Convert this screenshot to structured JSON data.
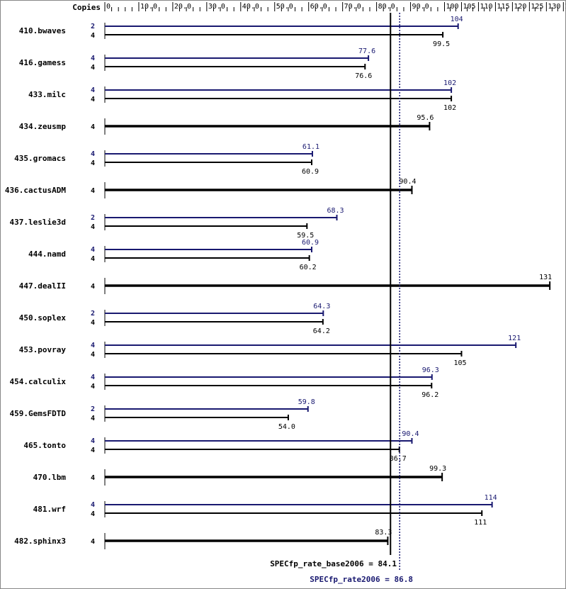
{
  "chart_data": {
    "type": "bar",
    "axis": {
      "label": "Copies",
      "min": 0,
      "max": 135,
      "ticks": [
        {
          "v": 0,
          "t": "0"
        },
        {
          "v": 10,
          "t": "10.0"
        },
        {
          "v": 20,
          "t": "20.0"
        },
        {
          "v": 30,
          "t": "30.0"
        },
        {
          "v": 40,
          "t": "40.0"
        },
        {
          "v": 50,
          "t": "50.0"
        },
        {
          "v": 60,
          "t": "60.0"
        },
        {
          "v": 70,
          "t": "70.0"
        },
        {
          "v": 80,
          "t": "80.0"
        },
        {
          "v": 90,
          "t": "90.0"
        },
        {
          "v": 100,
          "t": "100"
        },
        {
          "v": 105,
          "t": "105"
        },
        {
          "v": 110,
          "t": "110"
        },
        {
          "v": 115,
          "t": "115"
        },
        {
          "v": 120,
          "t": "120"
        },
        {
          "v": 125,
          "t": "125"
        },
        {
          "v": 130,
          "t": "130"
        },
        {
          "v": 135,
          "t": "135"
        }
      ]
    },
    "colors": {
      "base": "#000000",
      "peak": "#191970"
    },
    "benchmarks": [
      {
        "name": "410.bwaves",
        "peak_copies": "2",
        "peak": 104,
        "peak_label": "104",
        "base_copies": "4",
        "base": 99.5,
        "base_label": "99.5"
      },
      {
        "name": "416.gamess",
        "peak_copies": "4",
        "peak": 77.6,
        "peak_label": "77.6",
        "base_copies": "4",
        "base": 76.6,
        "base_label": "76.6"
      },
      {
        "name": "433.milc",
        "peak_copies": "4",
        "peak": 102,
        "peak_label": "102",
        "base_copies": "4",
        "base": 102,
        "base_label": "102"
      },
      {
        "name": "434.zeusmp",
        "single": true,
        "base_copies": "4",
        "base": 95.6,
        "base_label": "95.6"
      },
      {
        "name": "435.gromacs",
        "peak_copies": "4",
        "peak": 61.1,
        "peak_label": "61.1",
        "base_copies": "4",
        "base": 60.9,
        "base_label": "60.9"
      },
      {
        "name": "436.cactusADM",
        "single": true,
        "base_copies": "4",
        "base": 90.4,
        "base_label": "90.4"
      },
      {
        "name": "437.leslie3d",
        "peak_copies": "2",
        "peak": 68.3,
        "peak_label": "68.3",
        "base_copies": "4",
        "base": 59.5,
        "base_label": "59.5"
      },
      {
        "name": "444.namd",
        "peak_copies": "4",
        "peak": 60.9,
        "peak_label": "60.9",
        "base_copies": "4",
        "base": 60.2,
        "base_label": "60.2"
      },
      {
        "name": "447.dealII",
        "single": true,
        "base_copies": "4",
        "base": 131,
        "base_label": "131"
      },
      {
        "name": "450.soplex",
        "peak_copies": "2",
        "peak": 64.3,
        "peak_label": "64.3",
        "base_copies": "4",
        "base": 64.2,
        "base_label": "64.2"
      },
      {
        "name": "453.povray",
        "peak_copies": "4",
        "peak": 121,
        "peak_label": "121",
        "base_copies": "4",
        "base": 105,
        "base_label": "105"
      },
      {
        "name": "454.calculix",
        "peak_copies": "4",
        "peak": 96.3,
        "peak_label": "96.3",
        "base_copies": "4",
        "base": 96.2,
        "base_label": "96.2"
      },
      {
        "name": "459.GemsFDTD",
        "peak_copies": "2",
        "peak": 59.8,
        "peak_label": "59.8",
        "base_copies": "4",
        "base": 54.0,
        "base_label": "54.0"
      },
      {
        "name": "465.tonto",
        "peak_copies": "4",
        "peak": 90.4,
        "peak_label": "90.4",
        "base_copies": "4",
        "base": 86.7,
        "base_label": "86.7"
      },
      {
        "name": "470.lbm",
        "single": true,
        "base_copies": "4",
        "base": 99.3,
        "base_label": "99.3"
      },
      {
        "name": "481.wrf",
        "peak_copies": "4",
        "peak": 114,
        "peak_label": "114",
        "base_copies": "4",
        "base": 111,
        "base_label": "111"
      },
      {
        "name": "482.sphinx3",
        "single": true,
        "base_copies": "4",
        "base": 83.3,
        "base_label": "83.3"
      }
    ],
    "reference_lines": [
      {
        "name": "base",
        "value": 84.1,
        "label": "SPECfp_rate_base2006 = 84.1",
        "style": "solid"
      },
      {
        "name": "peak",
        "value": 86.8,
        "label": "SPECfp_rate2006 = 86.8",
        "style": "dotted"
      }
    ]
  }
}
